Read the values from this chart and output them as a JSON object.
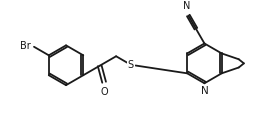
{
  "bg_color": "#ffffff",
  "line_color": "#1a1a1a",
  "line_width": 1.3,
  "font_size": 7.0,
  "figsize": [
    2.79,
    1.25
  ],
  "dpi": 100,
  "xlim": [
    0,
    279
  ],
  "ylim": [
    0,
    125
  ]
}
